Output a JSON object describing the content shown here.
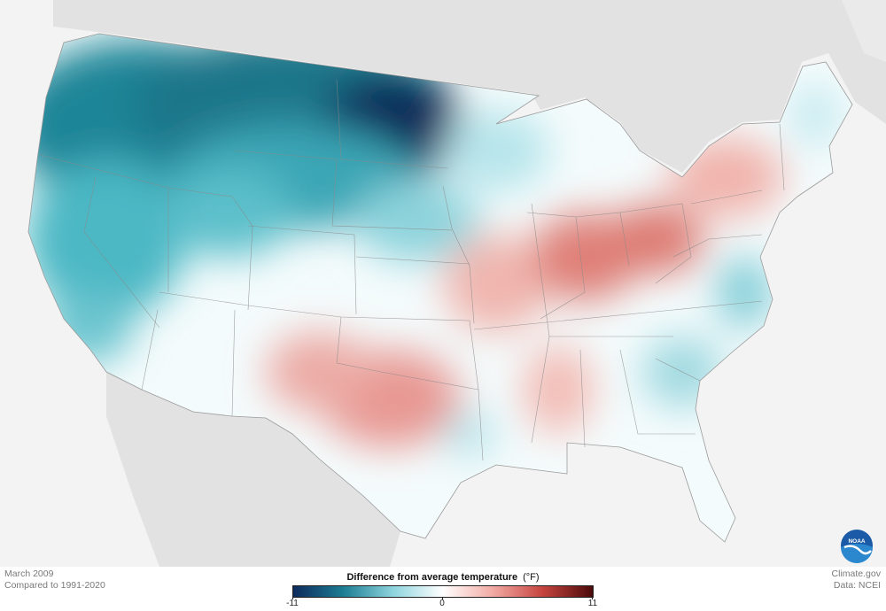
{
  "footer": {
    "period_line1": "March 2009",
    "period_line2": "Compared to 1991-2020",
    "credit_line1": "Climate.gov",
    "credit_line2": "Data: NCEI"
  },
  "legend": {
    "title": "Difference from average temperature",
    "unit": "(°F)",
    "min_label": "-11",
    "mid_label": "0",
    "max_label": "11",
    "min": -11,
    "max": 11,
    "colors": [
      "#0d2a5c",
      "#1d7d92",
      "#8dd4de",
      "#ffffff",
      "#f2aaa4",
      "#c6443f",
      "#4a0a0a"
    ]
  },
  "logo": {
    "text": "NOAA",
    "icon": "noaa-logo-icon"
  },
  "map": {
    "region": "Contiguous United States",
    "anomaly_summary": [
      {
        "area": "Northern Plains (North Dakota)",
        "value": -10
      },
      {
        "area": "Pacific Northwest",
        "value": -6
      },
      {
        "area": "Northern Rockies",
        "value": -6
      },
      {
        "area": "California",
        "value": -3
      },
      {
        "area": "Texas / Oklahoma",
        "value": 4
      },
      {
        "area": "Ohio Valley",
        "value": 5
      },
      {
        "area": "Northeast",
        "value": 2
      },
      {
        "area": "Southeast",
        "value": -1
      }
    ]
  }
}
